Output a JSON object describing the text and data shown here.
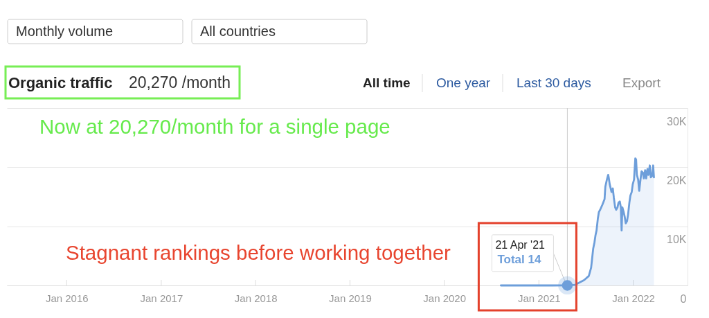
{
  "chart_data": {
    "type": "area",
    "title": "Organic traffic",
    "subtitle": "20,270 /month",
    "x": [
      "2020-08-07",
      "2020-10-15",
      "2020-12-20",
      "2021-02-23",
      "2021-04-21",
      "2021-05-20",
      "2021-06-07",
      "2021-06-25",
      "2021-07-13",
      "2021-07-22",
      "2021-07-26",
      "2021-07-30",
      "2021-08-04",
      "2021-08-08",
      "2021-08-12",
      "2021-08-17",
      "2021-08-21",
      "2021-08-26",
      "2021-09-03",
      "2021-09-12",
      "2021-09-15",
      "2021-09-21",
      "2021-09-26",
      "2021-09-28",
      "2021-10-02",
      "2021-10-09",
      "2021-10-14",
      "2021-10-18",
      "2021-10-23",
      "2021-10-27",
      "2021-11-01",
      "2021-11-05",
      "2021-11-10",
      "2021-11-14",
      "2021-11-17",
      "2021-11-20",
      "2021-11-25",
      "2021-11-29",
      "2021-12-03",
      "2021-12-08",
      "2021-12-12",
      "2021-12-17",
      "2021-12-21",
      "2021-12-26",
      "2021-12-30",
      "2022-01-04",
      "2022-01-09",
      "2022-01-12",
      "2022-01-15",
      "2022-01-20",
      "2022-01-24",
      "2022-01-29",
      "2022-02-02",
      "2022-02-07",
      "2022-02-11",
      "2022-02-16",
      "2022-02-20",
      "2022-02-25",
      "2022-03-01",
      "2022-03-06",
      "2022-03-10",
      "2022-03-15",
      "2022-03-19",
      "2022-03-22"
    ],
    "series": [
      {
        "color": "#6d9eda",
        "values": [
          0,
          0,
          0,
          0,
          14,
          100,
          500,
          900,
          1600,
          3000,
          4600,
          6200,
          7300,
          8500,
          9300,
          11300,
          12400,
          12800,
          13600,
          14600,
          16700,
          17900,
          18700,
          18300,
          17100,
          15800,
          16400,
          14800,
          13200,
          12800,
          13200,
          14000,
          14200,
          13200,
          9300,
          13200,
          12400,
          11600,
          10500,
          10900,
          12000,
          14000,
          15200,
          15800,
          17100,
          17900,
          21500,
          21300,
          18700,
          17900,
          16000,
          17900,
          19300,
          19100,
          18100,
          19500,
          18100,
          19700,
          18700,
          20300,
          18300,
          18500,
          20300,
          18300
        ]
      }
    ],
    "xlim": [
      "2015-05-15",
      "2022-07-30"
    ],
    "xticks": [
      {
        "value": "2016-01",
        "label": "Jan 2016"
      },
      {
        "value": "2017-01",
        "label": "Jan 2017"
      },
      {
        "value": "2018-01",
        "label": "Jan 2018"
      },
      {
        "value": "2019-01",
        "label": "Jan 2019"
      },
      {
        "value": "2020-01",
        "label": "Jan 2020"
      },
      {
        "value": "2021-01",
        "label": "Jan 2021"
      },
      {
        "value": "2022-01",
        "label": "Jan 2022"
      }
    ],
    "ylim": [
      0,
      30000
    ],
    "yticks": [
      0,
      {
        "value": 10000,
        "label": "10K"
      },
      {
        "value": 20000,
        "label": "20K"
      },
      {
        "value": 30000,
        "label": "30K"
      }
    ],
    "grid": "y",
    "ref_lines": [
      {
        "axis": "x",
        "value": "2021-04-21",
        "label": null,
        "color": "#cccccc"
      }
    ],
    "annotations": [
      "Monthly volume",
      "All countries",
      "All time",
      "One year",
      "Last 30 days",
      "Export",
      "Now at 20,270/month for a single page",
      "Stagnant rankings before working together",
      {
        "text": "21 Apr '21",
        "x": "2021-04-21",
        "y": 14
      },
      {
        "text": "Total 14",
        "x": "2021-04-21",
        "y": 14
      }
    ]
  }
}
